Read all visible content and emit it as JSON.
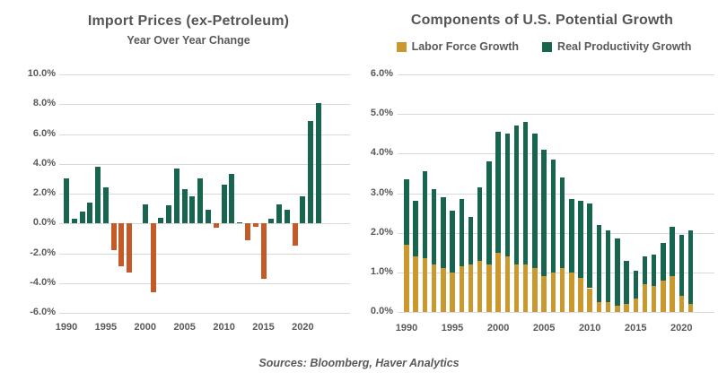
{
  "footer": {
    "sources": "Sources: Bloomberg, Haver Analytics"
  },
  "colors": {
    "gridline": "#D9D9D9",
    "text_gray": "#595959",
    "import_positive_green": "#17654F",
    "import_negative_orange": "#C45A28",
    "labor_force_gold": "#C9982F",
    "productivity_green": "#17654F"
  },
  "chart_data": [
    {
      "type": "bar",
      "title": "Import Prices (ex-Petroleum)",
      "subtitle": "Year Over Year Change",
      "xlabel": "",
      "ylabel": "",
      "grid": true,
      "ylim": [
        -6,
        10
      ],
      "positive_color": "#17654F",
      "negative_color": "#C45A28",
      "x": [
        1990,
        1991,
        1992,
        1993,
        1994,
        1995,
        1996,
        1997,
        1998,
        1999,
        2000,
        2001,
        2002,
        2003,
        2004,
        2005,
        2006,
        2007,
        2008,
        2009,
        2010,
        2011,
        2012,
        2013,
        2014,
        2015,
        2016,
        2017,
        2018,
        2019,
        2020,
        2021,
        2022
      ],
      "values": [
        3.0,
        0.3,
        0.8,
        1.4,
        3.8,
        2.4,
        -1.8,
        -2.9,
        -3.3,
        0.0,
        1.3,
        -4.6,
        0.4,
        1.2,
        3.7,
        2.3,
        1.8,
        3.0,
        0.9,
        -0.3,
        2.6,
        3.3,
        0.1,
        -1.1,
        -0.2,
        -3.7,
        0.3,
        1.3,
        0.9,
        -1.5,
        1.8,
        6.9,
        8.1
      ],
      "yticks": [
        {
          "value": 10,
          "label": "10.0%"
        },
        {
          "value": 8,
          "label": "8.0%"
        },
        {
          "value": 6,
          "label": "6.0%"
        },
        {
          "value": 4,
          "label": "4.0%"
        },
        {
          "value": 2,
          "label": "2.0%"
        },
        {
          "value": 0,
          "label": "0.0%"
        },
        {
          "value": -2,
          "label": "-2.0%"
        },
        {
          "value": -4,
          "label": "-4.0%"
        },
        {
          "value": -6,
          "label": "-6.0%"
        }
      ],
      "xticks": [
        1990,
        1995,
        2000,
        2005,
        2010,
        2015,
        2020
      ]
    },
    {
      "type": "bar",
      "stacked": true,
      "title": "Components of U.S. Potential Growth",
      "xlabel": "",
      "ylabel": "",
      "grid": true,
      "ylim": [
        0,
        6
      ],
      "legend_position": "top",
      "x": [
        1990,
        1991,
        1992,
        1993,
        1994,
        1995,
        1996,
        1997,
        1998,
        1999,
        2000,
        2001,
        2002,
        2003,
        2004,
        2005,
        2006,
        2007,
        2008,
        2009,
        2010,
        2011,
        2012,
        2013,
        2014,
        2015,
        2016,
        2017,
        2018,
        2019,
        2020,
        2021
      ],
      "series": [
        {
          "name": "Labor Force Growth",
          "color": "#C9982F",
          "values": [
            1.7,
            1.4,
            1.35,
            1.2,
            1.1,
            1.0,
            1.15,
            1.2,
            1.3,
            1.2,
            1.5,
            1.4,
            1.2,
            1.2,
            1.1,
            0.9,
            1.0,
            1.1,
            1.0,
            0.85,
            0.6,
            0.25,
            0.25,
            0.15,
            0.2,
            0.35,
            0.7,
            0.65,
            0.8,
            0.9,
            0.4,
            0.2
          ]
        },
        {
          "name": "Real Productivity Growth",
          "color": "#17654F",
          "values": [
            1.65,
            1.4,
            2.2,
            1.9,
            1.8,
            1.55,
            1.7,
            1.2,
            1.85,
            2.6,
            3.05,
            3.1,
            3.5,
            3.6,
            3.4,
            3.2,
            2.85,
            2.3,
            1.85,
            1.95,
            2.15,
            1.95,
            1.8,
            1.7,
            1.1,
            0.7,
            0.7,
            0.8,
            0.95,
            1.25,
            1.55,
            1.85
          ]
        }
      ],
      "yticks": [
        {
          "value": 6,
          "label": "6.0%"
        },
        {
          "value": 5,
          "label": "5.0%"
        },
        {
          "value": 4,
          "label": "4.0%"
        },
        {
          "value": 3,
          "label": "3.0%"
        },
        {
          "value": 2,
          "label": "2.0%"
        },
        {
          "value": 1,
          "label": "1.0%"
        },
        {
          "value": 0,
          "label": "0.0%"
        }
      ],
      "xticks": [
        1990,
        1995,
        2000,
        2005,
        2010,
        2015,
        2020
      ]
    }
  ]
}
